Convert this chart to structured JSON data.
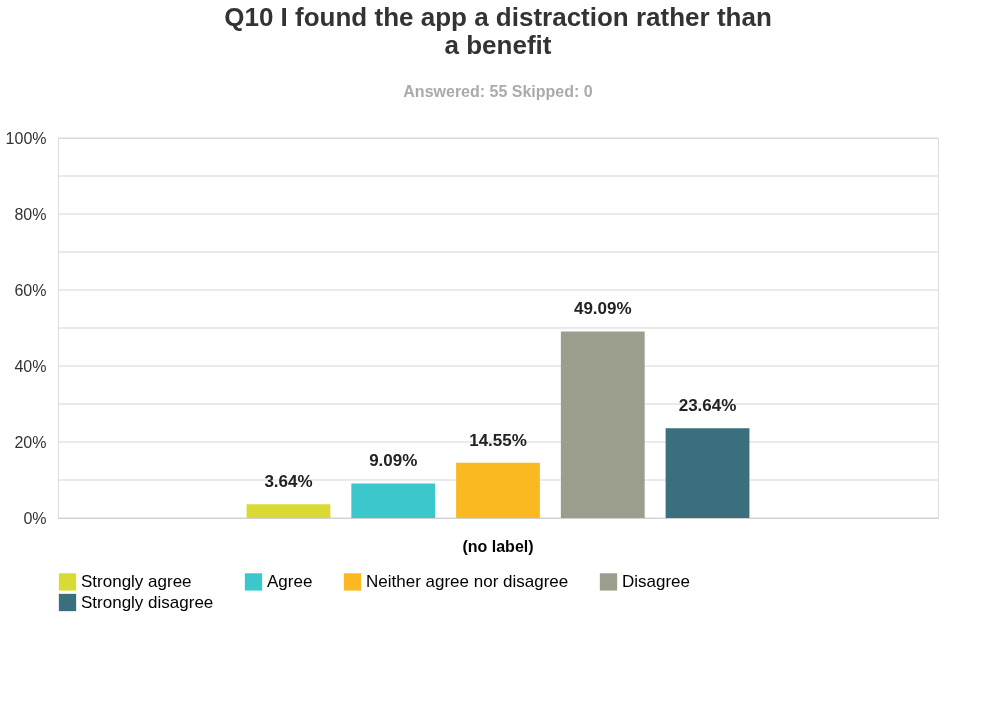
{
  "chart_data": {
    "type": "bar",
    "title": "Q10 I found the app a distraction rather than a benefit",
    "subtitle": "Answered: 55    Skipped: 0",
    "categories": [
      "(no label)"
    ],
    "series": [
      {
        "name": "Strongly agree",
        "color": "#d9db34",
        "values": [
          3.64
        ]
      },
      {
        "name": "Agree",
        "color": "#3cc7cc",
        "values": [
          9.09
        ]
      },
      {
        "name": "Neither agree nor disagree",
        "color": "#fbb921",
        "values": [
          14.55
        ]
      },
      {
        "name": "Disagree",
        "color": "#9b9d8d",
        "values": [
          49.09
        ]
      },
      {
        "name": "Strongly disagree",
        "color": "#3b6f7d",
        "values": [
          23.64
        ]
      }
    ],
    "ylim": [
      0,
      100
    ],
    "yticks": [
      {
        "value": 0,
        "label": "0%"
      },
      {
        "value": 10,
        "label": null
      },
      {
        "value": 20,
        "label": "20%"
      },
      {
        "value": 30,
        "label": null
      },
      {
        "value": 40,
        "label": "40%"
      },
      {
        "value": 50,
        "label": null
      },
      {
        "value": 60,
        "label": "60%"
      },
      {
        "value": 70,
        "label": null
      },
      {
        "value": 80,
        "label": "80%"
      },
      {
        "value": 90,
        "label": null
      },
      {
        "value": 100,
        "label": "100%"
      }
    ],
    "value_labels": [
      "3.64%",
      "9.09%",
      "14.55%",
      "49.09%",
      "23.64%"
    ],
    "grid": "y",
    "legend": "bottom"
  }
}
